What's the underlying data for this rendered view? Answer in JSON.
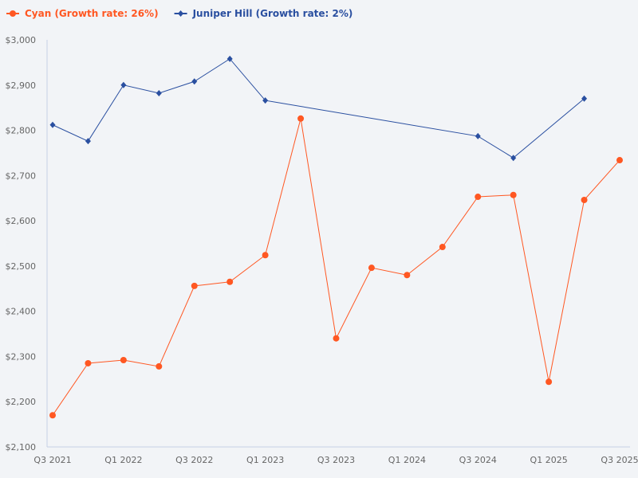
{
  "chart_data": {
    "type": "line",
    "title": "",
    "xlabel": "",
    "ylabel": "",
    "ylim": [
      2100,
      3000
    ],
    "y_ticks": [
      "$2,100",
      "$2,200",
      "$2,300",
      "$2,400",
      "$2,500",
      "$2,600",
      "$2,700",
      "$2,800",
      "$2,900",
      "$3,000"
    ],
    "y_tick_values": [
      2100,
      2200,
      2300,
      2400,
      2500,
      2600,
      2700,
      2800,
      2900,
      3000
    ],
    "categories": [
      "Q3 2021",
      "Q4 2021",
      "Q1 2022",
      "Q2 2022",
      "Q3 2022",
      "Q4 2022",
      "Q1 2023",
      "Q2 2023",
      "Q3 2023",
      "Q4 2023",
      "Q1 2024",
      "Q2 2024",
      "Q3 2024",
      "Q4 2024",
      "Q1 2025",
      "Q2 2025",
      "Q3 2025"
    ],
    "x_tick_labels": [
      "Q3 2021",
      "Q1 2022",
      "Q3 2022",
      "Q1 2023",
      "Q3 2023",
      "Q1 2024",
      "Q3 2024",
      "Q1 2025",
      "Q3 2025"
    ],
    "grid": false,
    "legend_position": "top-left",
    "series": [
      {
        "name": "Cyan (Growth rate: 26%)",
        "color": "#ff5722",
        "marker": "circle",
        "values": [
          2170,
          2285,
          2292,
          2278,
          2456,
          2465,
          2524,
          2826,
          2340,
          2496,
          2480,
          2542,
          2653,
          2657,
          2244,
          2646,
          2734
        ]
      },
      {
        "name": "Juniper Hill (Growth rate: 2%)",
        "color": "#2a4fa0",
        "marker": "diamond",
        "values": [
          2812,
          2776,
          2900,
          2882,
          2908,
          2958,
          2866,
          null,
          null,
          null,
          null,
          null,
          2787,
          2739,
          null,
          2870,
          null
        ]
      }
    ]
  }
}
